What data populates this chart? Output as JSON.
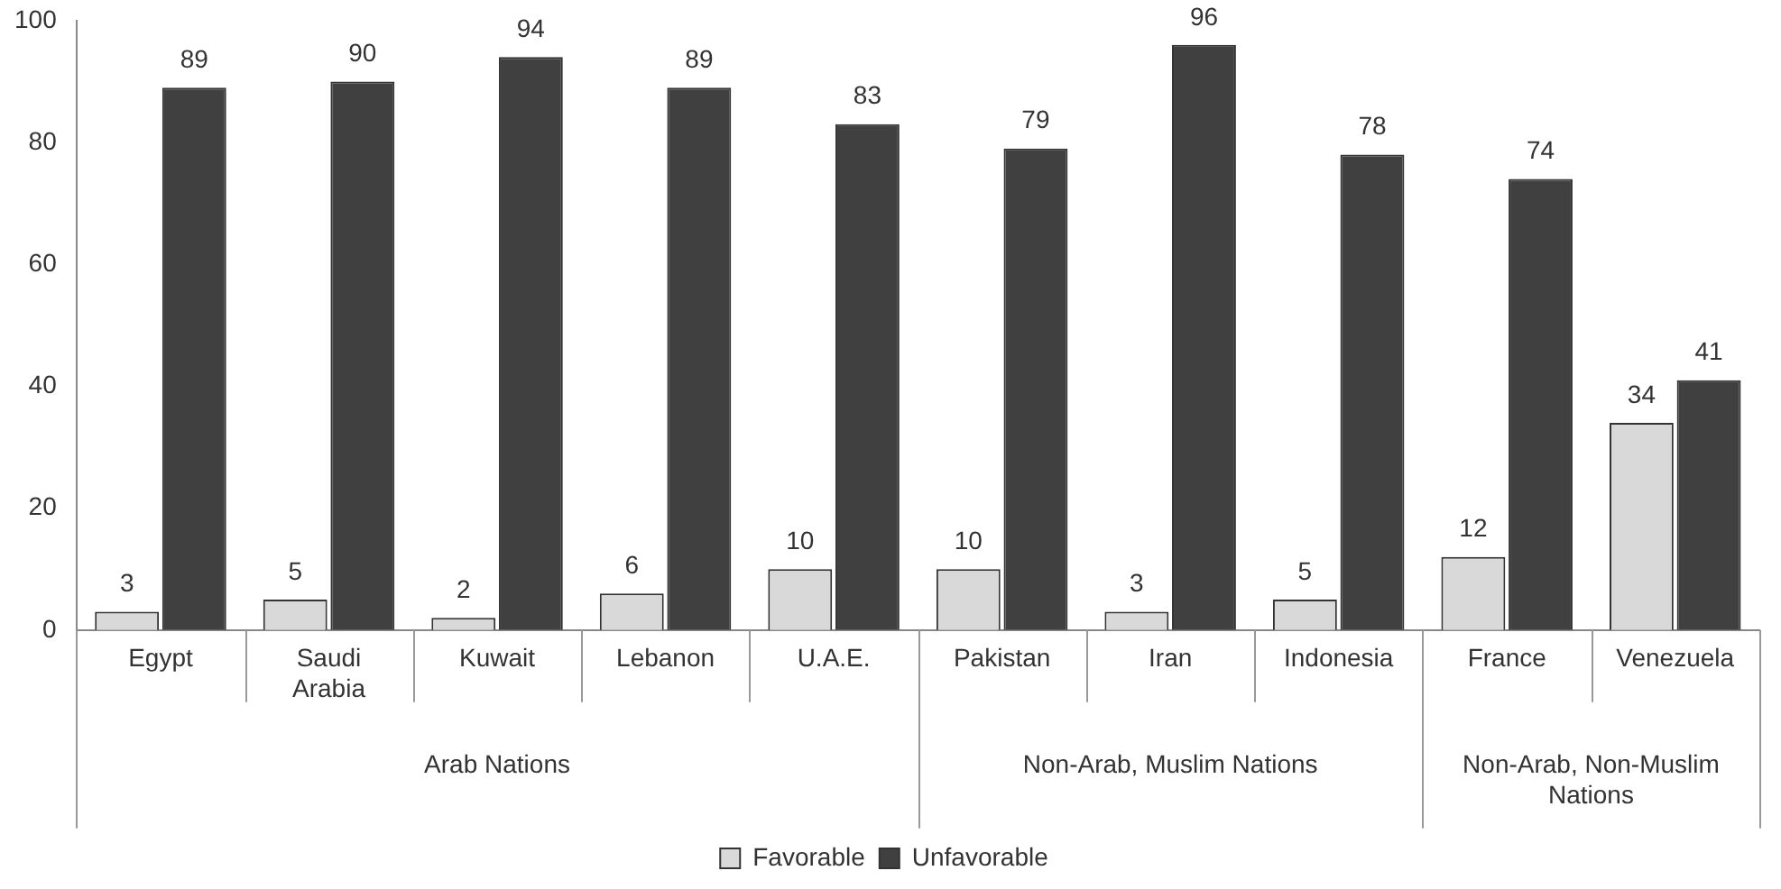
{
  "chart_data": {
    "type": "bar",
    "categories": [
      "Egypt",
      "Saudi Arabia",
      "Kuwait",
      "Lebanon",
      "U.A.E.",
      "Pakistan",
      "Iran",
      "Indonesia",
      "France",
      "Venezuela"
    ],
    "series": [
      {
        "name": "Favorable",
        "color": "#d9d9d9",
        "values": [
          3,
          5,
          2,
          6,
          10,
          10,
          3,
          5,
          12,
          34
        ]
      },
      {
        "name": "Unfavorable",
        "color": "#404040",
        "values": [
          89,
          90,
          94,
          89,
          83,
          79,
          96,
          78,
          74,
          41
        ]
      }
    ],
    "annotations": [
      "Arab Nations",
      "Non-Arab, Muslim Nations",
      "Non-Arab, Non-Muslim Nations"
    ],
    "ylim": [
      0,
      100
    ],
    "yticks": [
      0,
      20,
      40,
      60,
      80,
      100
    ],
    "grid": false,
    "legend": "bottom",
    "data_labels": true
  }
}
